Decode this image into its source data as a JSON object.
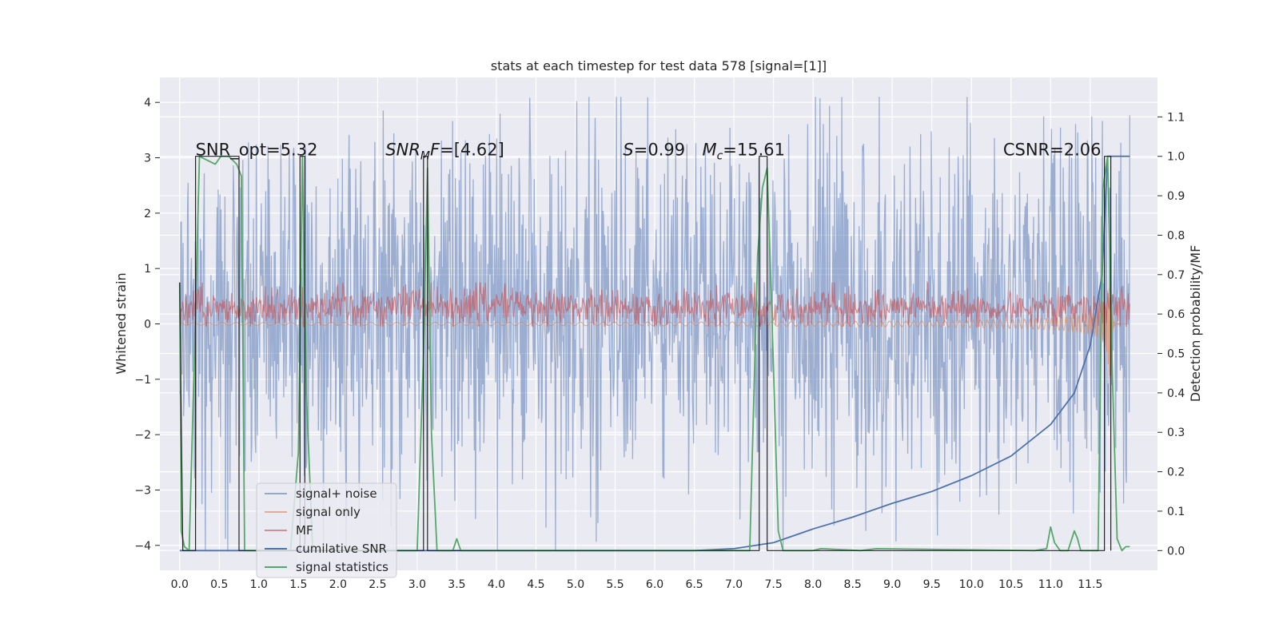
{
  "chart_data": {
    "type": "line",
    "title": "stats at each timestep for test data 578 [signal=[1]]",
    "ylabel_left": "Whitened strain",
    "ylabel_right": "Detection probability/MF",
    "xlabel": "",
    "xlim": [
      -0.25,
      12.35
    ],
    "ylim_left": [
      -4.45,
      4.45
    ],
    "ylim_right": [
      -0.05,
      1.2
    ],
    "x_ticks": [
      0.0,
      0.5,
      1.0,
      1.5,
      2.0,
      2.5,
      3.0,
      3.5,
      4.0,
      4.5,
      5.0,
      5.5,
      6.0,
      6.5,
      7.0,
      7.5,
      8.0,
      8.5,
      9.0,
      9.5,
      10.0,
      10.5,
      11.0,
      11.5
    ],
    "x_tick_labels": [
      "0.0",
      "0.5",
      "1.0",
      "1.5",
      "2.0",
      "2.5",
      "3.0",
      "3.5",
      "4.0",
      "4.5",
      "5.0",
      "5.5",
      "6.0",
      "6.5",
      "7.0",
      "7.5",
      "8.0",
      "8.5",
      "9.0",
      "9.5",
      "10.0",
      "10.5",
      "11.0",
      "11.5"
    ],
    "y_left_ticks": [
      -4,
      -3,
      -2,
      -1,
      0,
      1,
      2,
      3,
      4
    ],
    "y_left_tick_labels": [
      "−4",
      "−3",
      "−2",
      "−1",
      "0",
      "1",
      "2",
      "3",
      "4"
    ],
    "y_right_ticks": [
      0.0,
      0.1,
      0.2,
      0.3,
      0.4,
      0.5,
      0.6,
      0.7,
      0.8,
      0.9,
      1.0,
      1.1
    ],
    "y_right_tick_labels": [
      "0.0",
      "0.1",
      "0.2",
      "0.3",
      "0.4",
      "0.5",
      "0.6",
      "0.7",
      "0.8",
      "0.9",
      "1.0",
      "1.1"
    ],
    "grid": true,
    "legend_position": "lower-left",
    "annotations": [
      {
        "text": "SNR_opt=5.32",
        "x": 0.2,
        "y_right": 1.0
      },
      {
        "text": "SNR_MF=[4.62]",
        "x": 2.6,
        "y_right": 1.0
      },
      {
        "text": "S=0.99",
        "x": 5.6,
        "y_right": 1.0
      },
      {
        "text": "M_c=15.61",
        "x": 6.6,
        "y_right": 1.0
      },
      {
        "text": "CSNR=2.06",
        "x": 10.4,
        "y_right": 1.0
      }
    ],
    "series": [
      {
        "name": "signal+ noise",
        "axis": "left",
        "style": "noisy-strain",
        "x_range": [
          0.0,
          12.0
        ],
        "typical_range": [
          -2.7,
          3.1
        ],
        "extremes": [
          -4.1,
          4.1
        ],
        "color": "#4c72b0"
      },
      {
        "name": "signal only",
        "axis": "left",
        "style": "chirp",
        "x_range": [
          0.0,
          12.0
        ],
        "merger_x": 11.75,
        "peak_amplitude": 1.0,
        "color": "#dd8452"
      },
      {
        "name": "MF",
        "axis": "left",
        "style": "noise-band",
        "x_range": [
          0.0,
          12.0
        ],
        "typical_range": [
          0.05,
          0.55
        ],
        "color": "#c44e52"
      },
      {
        "name": "cumilative SNR",
        "axis": "right",
        "style": "line",
        "x": [
          0.0,
          6.5,
          7.0,
          7.5,
          8.0,
          8.5,
          9.0,
          9.5,
          10.0,
          10.5,
          11.0,
          11.3,
          11.5,
          11.65,
          11.72,
          12.0
        ],
        "y": [
          0.0,
          0.0,
          0.005,
          0.02,
          0.055,
          0.085,
          0.12,
          0.15,
          0.19,
          0.24,
          0.32,
          0.4,
          0.52,
          0.7,
          1.0,
          1.0
        ],
        "color": "#4c72b0"
      },
      {
        "name": "signal statistics",
        "axis": "right",
        "style": "line",
        "x": [
          0.0,
          0.02,
          0.06,
          0.12,
          0.18,
          0.25,
          0.35,
          0.45,
          0.52,
          0.62,
          0.72,
          0.78,
          0.82,
          0.88,
          1.0,
          1.4,
          1.5,
          1.55,
          1.6,
          1.68,
          1.75,
          3.0,
          3.08,
          3.13,
          3.18,
          3.25,
          3.45,
          3.5,
          3.55,
          3.6,
          7.2,
          7.3,
          7.36,
          7.42,
          7.48,
          7.56,
          7.62,
          8.0,
          8.1,
          8.6,
          8.8,
          10.8,
          10.95,
          11.0,
          11.05,
          11.12,
          11.22,
          11.3,
          11.34,
          11.38,
          11.45,
          11.6,
          11.66,
          11.72,
          11.78,
          11.84,
          11.9,
          11.95,
          12.0
        ],
        "y": [
          0.68,
          0.05,
          0.01,
          0.0,
          0.45,
          1.0,
          0.99,
          0.98,
          1.0,
          1.0,
          0.98,
          0.95,
          0.0,
          0.0,
          0.0,
          0.0,
          0.25,
          1.0,
          0.4,
          0.0,
          0.0,
          0.0,
          0.5,
          0.97,
          0.3,
          0.0,
          0.0,
          0.03,
          0.0,
          0.0,
          0.0,
          0.75,
          0.92,
          0.97,
          0.6,
          0.05,
          0.0,
          0.0,
          0.005,
          0.0,
          0.005,
          0.0,
          0.005,
          0.06,
          0.02,
          0.0,
          0.0,
          0.05,
          0.03,
          0.0,
          0.0,
          0.0,
          0.92,
          1.0,
          0.45,
          0.03,
          0.0,
          0.01,
          0.01
        ],
        "color": "#55a868"
      },
      {
        "name": "",
        "axis": "right",
        "style": "detections",
        "x": [
          0.0,
          0.04,
          0.04,
          0.2,
          0.2,
          0.75,
          0.75,
          1.52,
          1.52,
          1.58,
          1.58,
          3.08,
          3.08,
          3.13,
          3.13,
          7.32,
          7.32,
          7.42,
          7.42,
          11.68,
          11.68,
          11.76,
          11.76
        ],
        "y": [
          0.68,
          0.0,
          0.0,
          0.0,
          1.0,
          1.0,
          0.0,
          0.0,
          1.0,
          1.0,
          0.0,
          0.0,
          1.0,
          1.0,
          0.0,
          0.0,
          1.0,
          1.0,
          0.0,
          0.0,
          1.0,
          1.0,
          0.0
        ],
        "color": "#222222"
      }
    ]
  },
  "legend": {
    "items": [
      {
        "label": "signal+ noise",
        "color": "#4c72b0"
      },
      {
        "label": "signal only",
        "color": "#dd8452"
      },
      {
        "label": "MF",
        "color": "#c44e52"
      },
      {
        "label": "cumilative SNR",
        "color": "#4c72b0"
      },
      {
        "label": "signal statistics",
        "color": "#55a868"
      }
    ]
  },
  "colors": {
    "plot_background": "#eaeaf2",
    "grid": "#ffffff",
    "text": "#262626"
  }
}
